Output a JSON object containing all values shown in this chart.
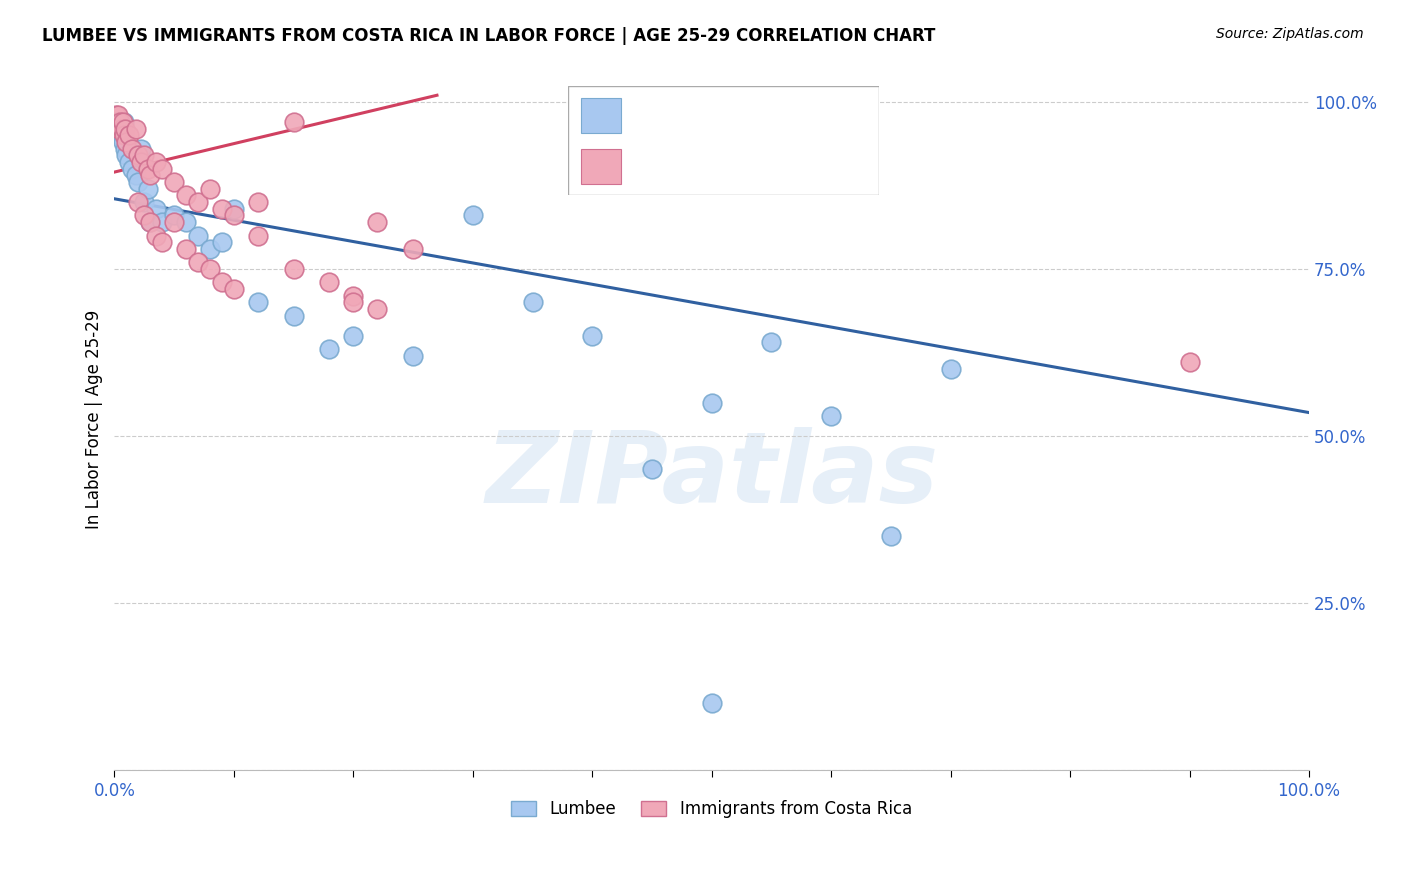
{
  "title": "LUMBEE VS IMMIGRANTS FROM COSTA RICA IN LABOR FORCE | AGE 25-29 CORRELATION CHART",
  "source": "Source: ZipAtlas.com",
  "ylabel": "In Labor Force | Age 25-29",
  "watermark": "ZIPatlas",
  "lumbee_color": "#A8C8F0",
  "lumbee_edge_color": "#7AAAD0",
  "costa_rica_color": "#F0A8B8",
  "costa_rica_edge_color": "#D07090",
  "blue_line_color": "#3060A0",
  "pink_line_color": "#D04060",
  "grid_color": "#CCCCCC",
  "background_color": "#FFFFFF",
  "tick_color": "#3366CC",
  "lumbee_points_x": [
    0.001,
    0.002,
    0.003,
    0.004,
    0.005,
    0.006,
    0.007,
    0.008,
    0.009,
    0.01,
    0.012,
    0.015,
    0.018,
    0.02,
    0.022,
    0.025,
    0.028,
    0.03,
    0.035,
    0.04,
    0.05,
    0.06,
    0.07,
    0.08,
    0.09,
    0.1,
    0.12,
    0.15,
    0.18,
    0.2,
    0.25,
    0.3,
    0.35,
    0.4,
    0.45,
    0.5,
    0.55,
    0.6,
    0.65,
    0.7,
    0.5
  ],
  "lumbee_points_y": [
    0.97,
    0.96,
    0.97,
    0.95,
    0.96,
    0.95,
    0.94,
    0.97,
    0.93,
    0.92,
    0.91,
    0.9,
    0.89,
    0.88,
    0.93,
    0.85,
    0.87,
    0.82,
    0.84,
    0.82,
    0.83,
    0.82,
    0.8,
    0.78,
    0.79,
    0.84,
    0.7,
    0.68,
    0.63,
    0.65,
    0.62,
    0.83,
    0.7,
    0.65,
    0.45,
    0.55,
    0.64,
    0.53,
    0.35,
    0.6,
    0.1
  ],
  "costa_rica_points_x": [
    0.001,
    0.002,
    0.003,
    0.004,
    0.005,
    0.006,
    0.007,
    0.008,
    0.009,
    0.01,
    0.012,
    0.015,
    0.018,
    0.02,
    0.022,
    0.025,
    0.028,
    0.03,
    0.035,
    0.04,
    0.05,
    0.06,
    0.07,
    0.08,
    0.09,
    0.1,
    0.12,
    0.15,
    0.02,
    0.025,
    0.03,
    0.035,
    0.04,
    0.05,
    0.06,
    0.07,
    0.08,
    0.09,
    0.1,
    0.12,
    0.15,
    0.2,
    0.22,
    0.25,
    0.22,
    0.2,
    0.9,
    0.18
  ],
  "costa_rica_points_y": [
    0.98,
    0.97,
    0.98,
    0.96,
    0.97,
    0.96,
    0.97,
    0.95,
    0.96,
    0.94,
    0.95,
    0.93,
    0.96,
    0.92,
    0.91,
    0.92,
    0.9,
    0.89,
    0.91,
    0.9,
    0.88,
    0.86,
    0.85,
    0.87,
    0.84,
    0.83,
    0.85,
    0.97,
    0.85,
    0.83,
    0.82,
    0.8,
    0.79,
    0.82,
    0.78,
    0.76,
    0.75,
    0.73,
    0.72,
    0.8,
    0.75,
    0.71,
    0.69,
    0.78,
    0.82,
    0.7,
    0.61,
    0.73
  ],
  "blue_line_x": [
    0.0,
    1.0
  ],
  "blue_line_y": [
    0.855,
    0.535
  ],
  "pink_line_x": [
    0.0,
    0.27
  ],
  "pink_line_y": [
    0.895,
    1.01
  ],
  "xlim": [
    0.0,
    1.0
  ],
  "ylim": [
    0.0,
    1.05
  ],
  "figsize": [
    14.06,
    8.92
  ],
  "dpi": 100
}
